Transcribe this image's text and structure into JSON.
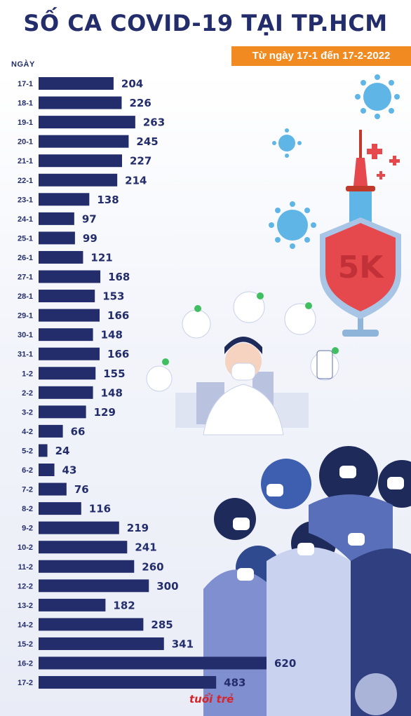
{
  "header": {
    "title": "SỐ CA COVID-19 TẠI TP.HCM",
    "subtitle": "Từ ngày 17-1 đến 17-2-2022",
    "axis_label": "NGÀY"
  },
  "logo": {
    "text": "tuổi trẻ"
  },
  "colors": {
    "bar": "#232d6b",
    "text": "#232d6b",
    "accent": "#f28a22",
    "shield": "#e5484d",
    "virus": "#5fb5e6"
  },
  "illustration": {
    "shield_text": "5K"
  },
  "chart_data": {
    "type": "bar",
    "orientation": "horizontal",
    "title": "SỐ CA COVID-19 TẠI TP.HCM",
    "subtitle": "Từ ngày 17-1 đến 17-2-2022",
    "ylabel": "NGÀY",
    "categories": [
      "17-1",
      "18-1",
      "19-1",
      "20-1",
      "21-1",
      "22-1",
      "23-1",
      "24-1",
      "25-1",
      "26-1",
      "27-1",
      "28-1",
      "29-1",
      "30-1",
      "31-1",
      "1-2",
      "2-2",
      "3-2",
      "4-2",
      "5-2",
      "6-2",
      "7-2",
      "8-2",
      "9-2",
      "10-2",
      "11-2",
      "12-2",
      "13-2",
      "14-2",
      "15-2",
      "16-2",
      "17-2"
    ],
    "values": [
      204,
      226,
      263,
      245,
      227,
      214,
      138,
      97,
      99,
      121,
      168,
      153,
      166,
      148,
      166,
      155,
      148,
      129,
      66,
      24,
      43,
      76,
      116,
      219,
      241,
      260,
      300,
      182,
      285,
      341,
      620,
      483
    ],
    "grid": false,
    "data_labels": true
  }
}
